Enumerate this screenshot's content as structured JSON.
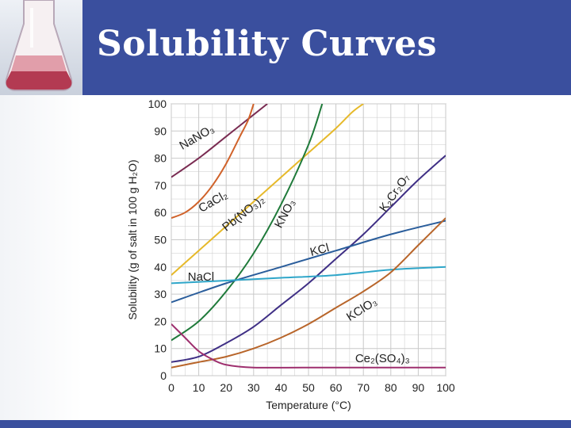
{
  "slide": {
    "title": "Solubility Curves"
  },
  "colors": {
    "header": "#3a4f9e",
    "plot_background": "#ffffff",
    "grid": "#c9c9c9"
  },
  "chart_data": {
    "type": "line",
    "title": "",
    "xlabel": "Temperature (°C)",
    "ylabel": "Solubility (g of salt in 100 g H₂O)",
    "xlim": [
      0,
      100
    ],
    "ylim": [
      0,
      100
    ],
    "x_ticks": [
      0,
      10,
      20,
      30,
      40,
      50,
      60,
      70,
      80,
      90,
      100
    ],
    "y_ticks": [
      0,
      10,
      20,
      30,
      40,
      50,
      60,
      70,
      80,
      90,
      100
    ],
    "grid": true,
    "legend": "none (labels on curves)",
    "series": [
      {
        "name": "NaNO₃",
        "color": "#7a2c52",
        "points": [
          [
            0,
            73
          ],
          [
            10,
            80
          ],
          [
            20,
            88
          ],
          [
            30,
            96
          ],
          [
            35,
            100
          ]
        ]
      },
      {
        "name": "CaCl₂",
        "color": "#d0622a",
        "points": [
          [
            0,
            58
          ],
          [
            5,
            60
          ],
          [
            10,
            64
          ],
          [
            15,
            70
          ],
          [
            20,
            78
          ],
          [
            25,
            88
          ],
          [
            28,
            94
          ],
          [
            30,
            100
          ]
        ]
      },
      {
        "name": "Pb(NO₃)₂",
        "color": "#e6b92a",
        "points": [
          [
            0,
            37
          ],
          [
            10,
            46
          ],
          [
            20,
            55
          ],
          [
            30,
            64
          ],
          [
            40,
            73
          ],
          [
            50,
            82
          ],
          [
            60,
            91
          ],
          [
            66,
            97
          ],
          [
            70,
            100
          ]
        ]
      },
      {
        "name": "KNO₃",
        "color": "#1f7a3a",
        "points": [
          [
            0,
            13
          ],
          [
            10,
            20
          ],
          [
            20,
            31
          ],
          [
            30,
            45
          ],
          [
            40,
            63
          ],
          [
            50,
            85
          ],
          [
            55,
            100
          ]
        ]
      },
      {
        "name": "K₂Cr₂O₇",
        "color": "#3f2f85",
        "points": [
          [
            0,
            5
          ],
          [
            10,
            7
          ],
          [
            20,
            12
          ],
          [
            30,
            18
          ],
          [
            40,
            26
          ],
          [
            50,
            34
          ],
          [
            60,
            43
          ],
          [
            70,
            52
          ],
          [
            80,
            62
          ],
          [
            90,
            72
          ],
          [
            100,
            81
          ]
        ]
      },
      {
        "name": "KCl",
        "color": "#2a5d9b",
        "points": [
          [
            0,
            27
          ],
          [
            20,
            34
          ],
          [
            40,
            40
          ],
          [
            60,
            46
          ],
          [
            80,
            52
          ],
          [
            100,
            57
          ]
        ]
      },
      {
        "name": "NaCl",
        "color": "#2fa6c9",
        "points": [
          [
            0,
            34
          ],
          [
            20,
            35
          ],
          [
            40,
            36
          ],
          [
            60,
            37
          ],
          [
            80,
            39
          ],
          [
            100,
            40
          ]
        ]
      },
      {
        "name": "KClO₃",
        "color": "#b8652a",
        "points": [
          [
            0,
            3
          ],
          [
            10,
            5
          ],
          [
            20,
            7
          ],
          [
            30,
            10
          ],
          [
            40,
            14
          ],
          [
            50,
            19
          ],
          [
            60,
            25
          ],
          [
            70,
            31
          ],
          [
            80,
            38
          ],
          [
            90,
            48
          ],
          [
            100,
            58
          ]
        ]
      },
      {
        "name": "Ce₂(SO₄)₃",
        "color": "#9e2f6e",
        "points": [
          [
            0,
            19
          ],
          [
            5,
            14
          ],
          [
            10,
            9
          ],
          [
            15,
            6
          ],
          [
            20,
            4
          ],
          [
            30,
            3
          ],
          [
            50,
            3
          ],
          [
            100,
            3
          ]
        ]
      }
    ],
    "labels": [
      {
        "text": "NaNO₃",
        "x": 4,
        "y": 83,
        "angle": -30,
        "series": 0
      },
      {
        "text": "CaCl₂",
        "x": 11,
        "y": 60,
        "angle": -30,
        "series": 1
      },
      {
        "text": "Pb(NO₃)₂",
        "x": 20,
        "y": 53,
        "angle": -38,
        "series": 2
      },
      {
        "text": "KNO₃",
        "x": 40,
        "y": 54,
        "angle": -62,
        "series": 3
      },
      {
        "text": "K₂Cr₂O₇",
        "x": 78,
        "y": 60,
        "angle": -55,
        "series": 4
      },
      {
        "text": "KCl",
        "x": 51,
        "y": 44,
        "angle": -15,
        "series": 5
      },
      {
        "text": "NaCl",
        "x": 6,
        "y": 35,
        "angle": 0,
        "series": 6
      },
      {
        "text": "KClO₃",
        "x": 65,
        "y": 20,
        "angle": -32,
        "series": 7
      },
      {
        "text": "Ce₂(SO₄)₃",
        "x": 67,
        "y": 5,
        "angle": 0,
        "series": 8
      }
    ]
  }
}
